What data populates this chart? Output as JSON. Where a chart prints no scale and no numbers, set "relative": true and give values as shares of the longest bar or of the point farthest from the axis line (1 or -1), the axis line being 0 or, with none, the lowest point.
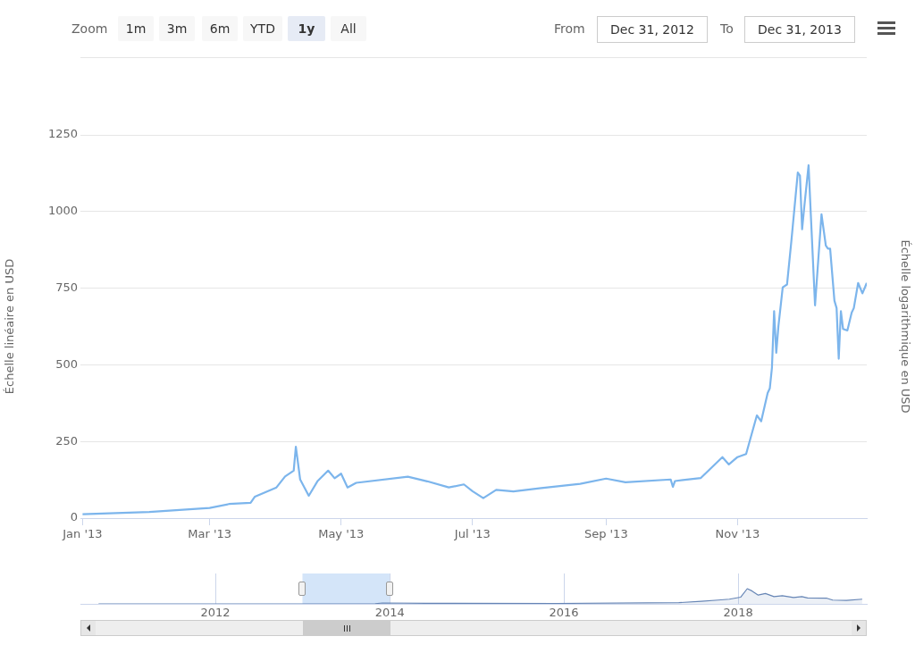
{
  "chart_data": [
    {
      "type": "line",
      "color": "#7cb5ec",
      "ylabel": "Échelle linéaire en USD",
      "y2label": "Échelle logarithmique en USD",
      "grid": "y",
      "annotations": [
        "Zoom",
        "1m",
        "3m",
        "6m",
        "YTD",
        "1y",
        "All",
        "From",
        "Dec 31, 2012",
        "To",
        "Dec 31, 2013"
      ],
      "xlim": [
        "2012-12-31",
        "2013-12-31"
      ],
      "xticks": [
        {
          "value": "2013-01-01",
          "label": "Jan '13"
        },
        {
          "value": "2013-03-01",
          "label": "Mar '13"
        },
        {
          "value": "2013-05-01",
          "label": "May '13"
        },
        {
          "value": "2013-07-01",
          "label": "Jul '13"
        },
        {
          "value": "2013-09-01",
          "label": "Sep '13"
        },
        {
          "value": "2013-11-01",
          "label": "Nov '13"
        }
      ],
      "ylim": [
        0,
        1250
      ],
      "yticks": [
        0,
        250,
        500,
        750,
        1000,
        1250
      ],
      "x": [
        "2013-01-01",
        "2013-02-01",
        "2013-03-01",
        "2013-03-10",
        "2013-03-20",
        "2013-03-22",
        "2013-04-01",
        "2013-04-05",
        "2013-04-09",
        "2013-04-10",
        "2013-04-12",
        "2013-04-16",
        "2013-04-20",
        "2013-04-25",
        "2013-04-28",
        "2013-05-01",
        "2013-05-04",
        "2013-05-08",
        "2013-06-01",
        "2013-06-10",
        "2013-06-20",
        "2013-06-27",
        "2013-07-01",
        "2013-07-06",
        "2013-07-12",
        "2013-07-20",
        "2013-08-01",
        "2013-08-20",
        "2013-09-01",
        "2013-09-10",
        "2013-10-01",
        "2013-10-02",
        "2013-10-03",
        "2013-10-15",
        "2013-10-25",
        "2013-10-28",
        "2013-11-01",
        "2013-11-05",
        "2013-11-10",
        "2013-11-12",
        "2013-11-15",
        "2013-11-16",
        "2013-11-17",
        "2013-11-18",
        "2013-11-19",
        "2013-11-20",
        "2013-11-22",
        "2013-11-24",
        "2013-11-26",
        "2013-11-29",
        "2013-11-30",
        "2013-12-01",
        "2013-12-02",
        "2013-12-04",
        "2013-12-05",
        "2013-12-07",
        "2013-12-10",
        "2013-12-12",
        "2013-12-13",
        "2013-12-14",
        "2013-12-16",
        "2013-12-17",
        "2013-12-18",
        "2013-12-19",
        "2013-12-20",
        "2013-12-22",
        "2013-12-24",
        "2013-12-25",
        "2013-12-27",
        "2013-12-29",
        "2013-12-31"
      ],
      "values": [
        13,
        20,
        33,
        46,
        50,
        70,
        100,
        136,
        155,
        233,
        126,
        73,
        120,
        155,
        130,
        145,
        100,
        115,
        135,
        120,
        100,
        110,
        88,
        65,
        92,
        87,
        97,
        112,
        129,
        117,
        126,
        102,
        121,
        131,
        199,
        175,
        199,
        209,
        335,
        316,
        408,
        423,
        491,
        675,
        539,
        626,
        753,
        762,
        903,
        1127,
        1117,
        942,
        1015,
        1151,
        996,
        694,
        991,
        889,
        879,
        879,
        709,
        685,
        520,
        675,
        617,
        612,
        670,
        685,
        767,
        733,
        767
      ]
    },
    {
      "type": "area",
      "color": "#6685b5",
      "relative": true,
      "grid": "x",
      "tick_labels": "x",
      "xlim": [
        "2010-06-14",
        "2019-06-24"
      ],
      "xticks": [
        {
          "value": "2012-01-01",
          "label": "2012"
        },
        {
          "value": "2014-01-01",
          "label": "2014"
        },
        {
          "value": "2016-01-01",
          "label": "2016"
        },
        {
          "value": "2018-01-01",
          "label": "2018"
        }
      ],
      "bands": [
        {
          "axis": "x",
          "from": "2012-12-31",
          "to": "2013-12-31",
          "color": "#d4e5f9"
        }
      ],
      "x": [
        "2010-08-29",
        "2012-01-27",
        "2013-11-01",
        "2013-12-01",
        "2014-06-01",
        "2015-12-01",
        "2017-04-27",
        "2017-07-30",
        "2017-10-09",
        "2017-11-25",
        "2018-01-11",
        "2018-02-08",
        "2018-02-27",
        "2018-03-26",
        "2018-04-25",
        "2018-05-31",
        "2018-07-05",
        "2018-08-21",
        "2018-09-25",
        "2018-10-19",
        "2019-01-08",
        "2019-02-01",
        "2019-03-31",
        "2019-06-05"
      ],
      "values": [
        0,
        0,
        0.01,
        0.06,
        0.04,
        0.03,
        0.08,
        0.17,
        0.25,
        0.31,
        0.44,
        1,
        0.86,
        0.58,
        0.68,
        0.48,
        0.54,
        0.42,
        0.48,
        0.39,
        0.37,
        0.25,
        0.23,
        0.31
      ]
    }
  ]
}
